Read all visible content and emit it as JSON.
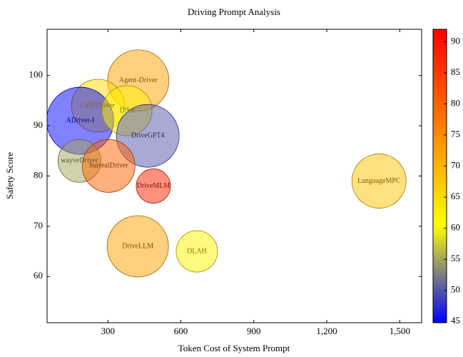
{
  "chart_data": {
    "type": "bubble",
    "title": "Driving Prompt Analysis",
    "x_label": "Token Cost of System Prompt",
    "y_label": "Safety Score",
    "labels": [
      "Agent-Driver",
      "GPT-Driver",
      "ADriver-I",
      "DiLu",
      "DriveGPT4",
      "wayveDriver",
      "SurrealDriver",
      "DriveMLM",
      "LanguageMPC",
      "DriveLLM",
      "DLAH"
    ],
    "x": [
      425,
      259,
      186,
      379,
      464,
      183,
      303,
      487,
      1415,
      423,
      666
    ],
    "y": [
      99,
      94,
      91,
      93,
      88,
      83,
      82,
      78,
      79,
      66,
      65
    ],
    "sizes": [
      43,
      37,
      47,
      35,
      44,
      30,
      37,
      24,
      38,
      43,
      29
    ],
    "color_values": [
      72,
      65,
      45,
      62,
      50,
      55,
      80,
      88,
      68,
      72,
      62
    ],
    "colormap": [
      "#0000ff",
      "#ffff00",
      "#ff8000",
      "#ff0000"
    ],
    "clim": [
      44.8,
      92
    ],
    "cticks": [
      45,
      50,
      55,
      60,
      65,
      70,
      75,
      80,
      85,
      90
    ],
    "xlim": [
      50,
      1590
    ],
    "xticks": [
      300,
      600,
      900,
      {
        "value": 1200,
        "label": "1,200"
      },
      {
        "value": 1500,
        "label": "1,500"
      }
    ],
    "ylim": [
      50.8,
      109.2
    ],
    "yticks": [
      60,
      70,
      80,
      90,
      100
    ]
  }
}
